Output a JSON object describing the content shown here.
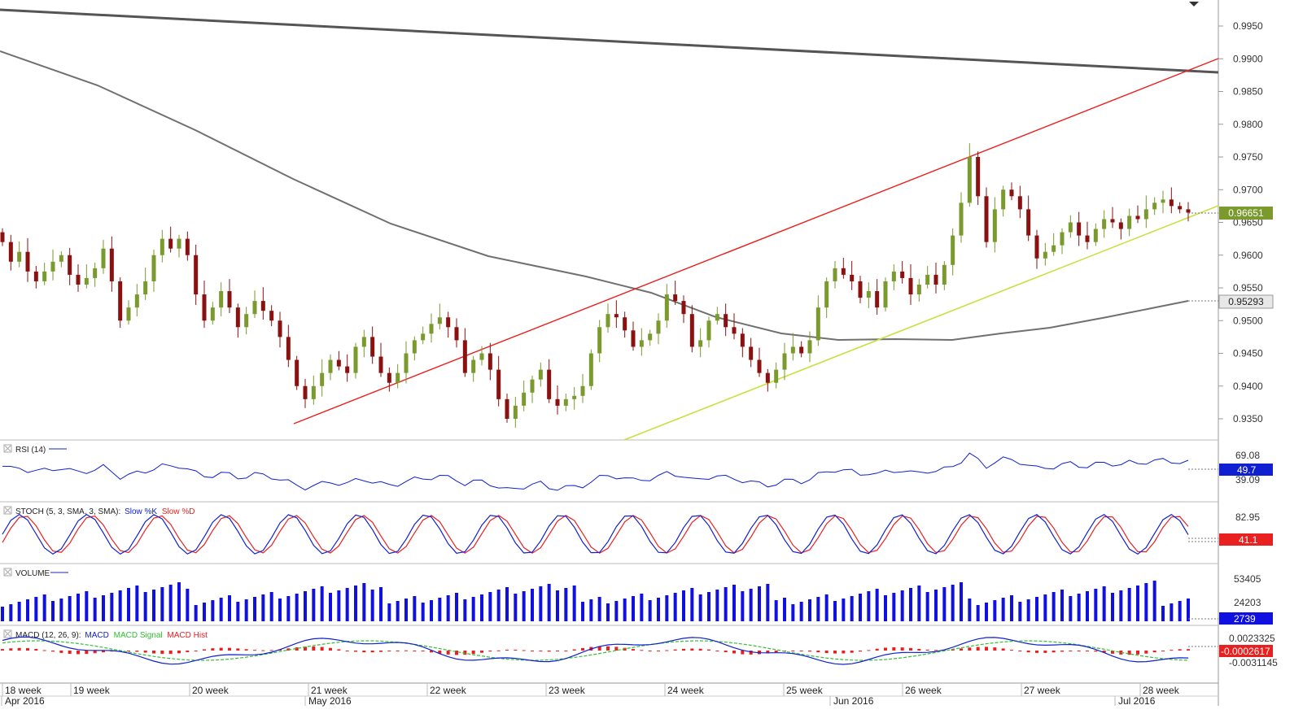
{
  "colors": {
    "bull": "#7a9a2e",
    "bear": "#8b1010",
    "resistance": "#e8201c",
    "support": "#c8e040",
    "ma_short": "#707070",
    "ma_long": "#555555",
    "rsi": "#1020d0",
    "stoch_k": "#1020d0",
    "stoch_d": "#e82020",
    "volume": "#1010e0",
    "macd": "#1020d0",
    "macd_signal": "#30c030",
    "macd_hist": "#e82020",
    "last_price_bg": "#7a9a2e",
    "ma_label_bg": "#e8e8e8"
  },
  "price_pane": {
    "y_ticks": [
      "0.9950",
      "0.9900",
      "0.9850",
      "0.9800",
      "0.9750",
      "0.9700",
      "0.9650",
      "0.9600",
      "0.9550",
      "0.9500",
      "0.9450",
      "0.9400",
      "0.9350"
    ],
    "last_price_label": "0.96651",
    "ma_value_label": "0.95293"
  },
  "rsi_pane": {
    "label": "RSI (14)",
    "y_ticks": [
      "69.08",
      "39.09"
    ],
    "value_label": "49.7"
  },
  "stoch_pane": {
    "label_prefix": "STOCH (5, 3, SMA, 3, SMA):",
    "label_k": "Slow %K",
    "label_d": "Slow %D",
    "y_ticks": [
      "82.95"
    ],
    "value_label": "41.1"
  },
  "volume_pane": {
    "label": "VOLUME",
    "y_ticks": [
      "53405",
      "24203"
    ],
    "value_label": "2739"
  },
  "macd_pane": {
    "label_prefix": "MACD (12, 26, 9):",
    "label_macd": "MACD",
    "label_signal": "MACD Signal",
    "label_hist": "MACD Hist",
    "y_ticks": [
      "0.0023325",
      "-0.0031145"
    ],
    "value_label": "-0.0002617"
  },
  "x_axis": {
    "weeks": [
      "18 week",
      "19 week",
      "20 week",
      "21 week",
      "22 week",
      "23 week",
      "24 week",
      "25 week",
      "26 week",
      "27 week",
      "28 week"
    ],
    "months": [
      "Apr 2016",
      "May 2016",
      "Jun 2016",
      "Jul 2016"
    ]
  },
  "chart_data": {
    "type": "candlestick",
    "instrument_precision": 5,
    "title": "",
    "ylim": [
      0.9315,
      0.998
    ],
    "indicators": [
      "RSI (14)",
      "STOCH (5, 3, SMA, 3, SMA)",
      "VOLUME",
      "MACD (12, 26, 9)"
    ],
    "closes": [
      0.962,
      0.959,
      0.9605,
      0.9575,
      0.956,
      0.9575,
      0.959,
      0.96,
      0.957,
      0.9555,
      0.9565,
      0.958,
      0.961,
      0.956,
      0.95,
      0.952,
      0.954,
      0.956,
      0.96,
      0.9625,
      0.961,
      0.9625,
      0.96,
      0.954,
      0.95,
      0.952,
      0.9545,
      0.952,
      0.949,
      0.951,
      0.953,
      0.9515,
      0.95,
      0.9475,
      0.944,
      0.94,
      0.938,
      0.94,
      0.942,
      0.944,
      0.943,
      0.942,
      0.946,
      0.9475,
      0.9445,
      0.942,
      0.9405,
      0.942,
      0.945,
      0.947,
      0.948,
      0.9495,
      0.9505,
      0.949,
      0.947,
      0.942,
      0.944,
      0.945,
      0.9425,
      0.938,
      0.935,
      0.937,
      0.939,
      0.941,
      0.9425,
      0.938,
      0.937,
      0.938,
      0.9385,
      0.94,
      0.945,
      0.949,
      0.951,
      0.9505,
      0.9485,
      0.946,
      0.947,
      0.948,
      0.95,
      0.954,
      0.953,
      0.951,
      0.946,
      0.947,
      0.95,
      0.951,
      0.949,
      0.948,
      0.946,
      0.944,
      0.942,
      0.9405,
      0.9425,
      0.945,
      0.946,
      0.945,
      0.947,
      0.952,
      0.956,
      0.958,
      0.957,
      0.956,
      0.9535,
      0.9545,
      0.952,
      0.956,
      0.9575,
      0.9565,
      0.954,
      0.9555,
      0.957,
      0.9555,
      0.9585,
      0.963,
      0.968,
      0.975,
      0.969,
      0.962,
      0.967,
      0.97,
      0.969,
      0.967,
      0.963,
      0.9595,
      0.9605,
      0.9615,
      0.9635,
      0.965,
      0.963,
      0.962,
      0.964,
      0.9655,
      0.965,
      0.964,
      0.966,
      0.9655,
      0.967,
      0.968,
      0.9685,
      0.9675,
      0.967,
      0.9665
    ]
  }
}
